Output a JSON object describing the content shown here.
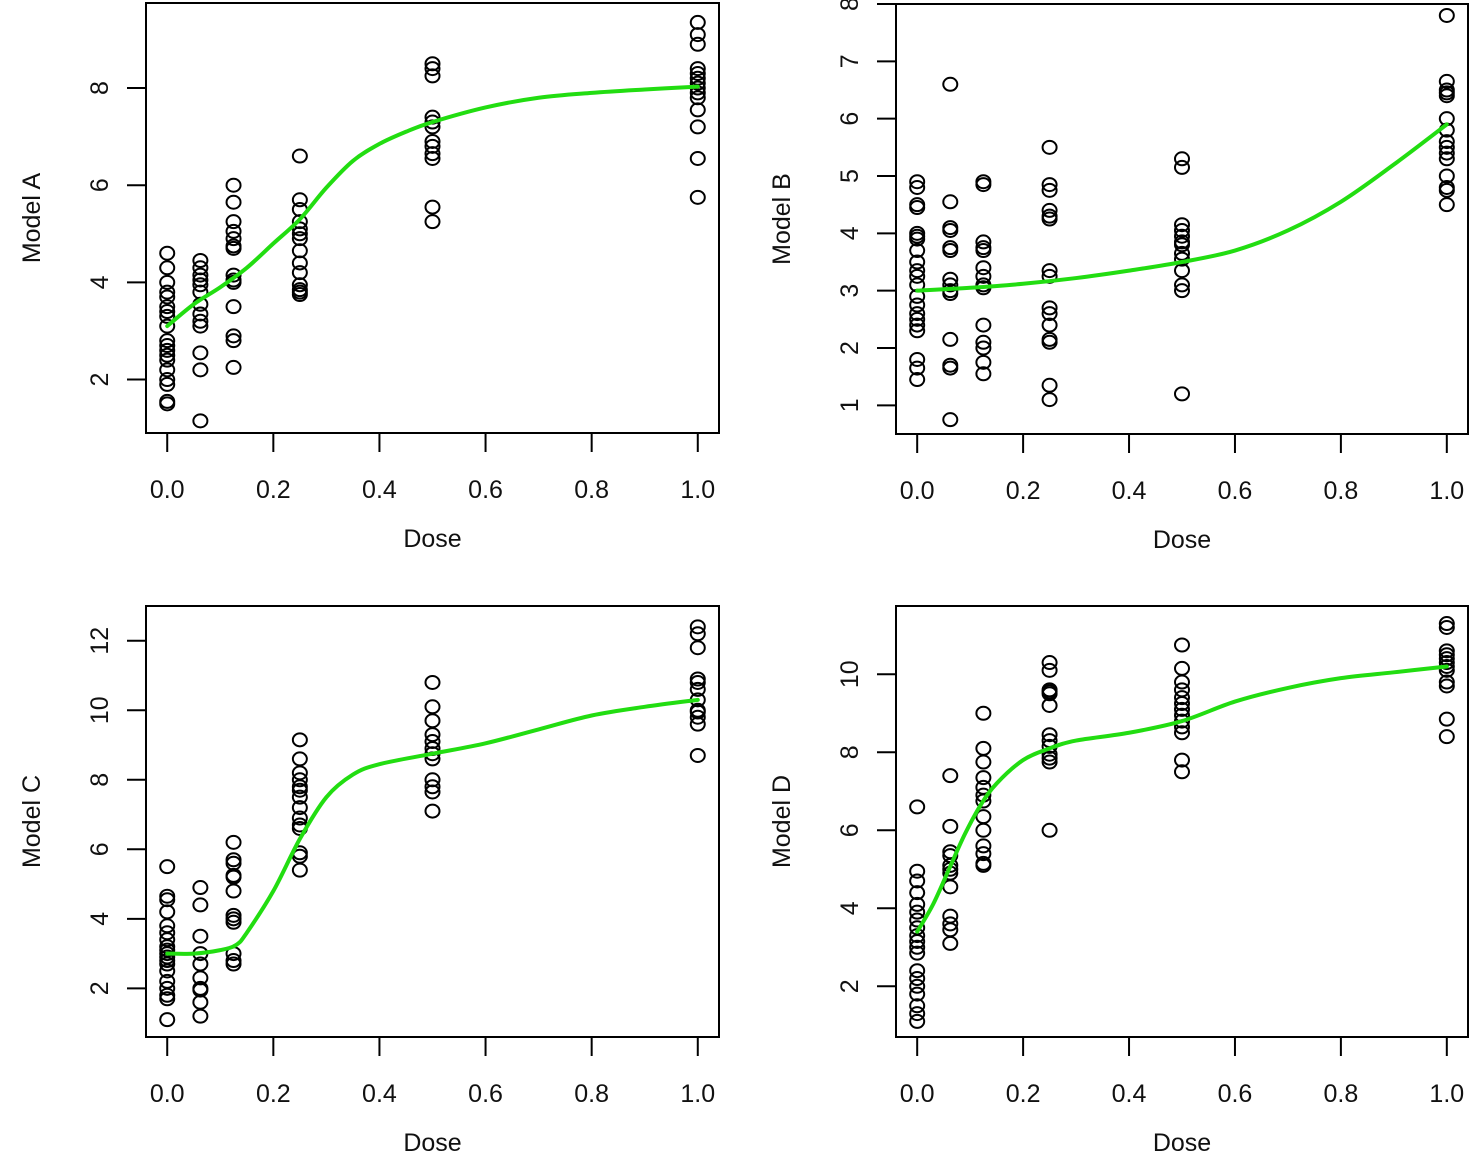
{
  "chart_data": [
    {
      "type": "scatter",
      "title": "",
      "xlabel": "Dose",
      "ylabel": "Model A",
      "xlim": [
        -0.04,
        1.04
      ],
      "ylim": [
        0.9,
        9.75
      ],
      "xticks": [
        0.0,
        0.2,
        0.4,
        0.6,
        0.8,
        1.0
      ],
      "xtick_labels": [
        "0.0",
        "0.2",
        "0.4",
        "0.6",
        "0.8",
        "1.0"
      ],
      "yticks": [
        2,
        4,
        6,
        8
      ],
      "ytick_labels": [
        "2",
        "4",
        "6",
        "8"
      ],
      "grid": false,
      "points": {
        "x_levels": [
          0.0,
          0.0625,
          0.125,
          0.25,
          0.5,
          1.0
        ],
        "y": [
          [
            4.6,
            4.3,
            4.0,
            3.8,
            3.7,
            3.5,
            3.4,
            3.3,
            3.1,
            2.8,
            2.7,
            2.6,
            2.5,
            2.4,
            2.2,
            2.0,
            1.9,
            1.55,
            1.5
          ],
          [
            4.45,
            4.3,
            4.15,
            4.05,
            3.95,
            3.8,
            3.55,
            3.35,
            3.2,
            3.1,
            2.55,
            2.2,
            1.15
          ],
          [
            6.0,
            5.65,
            5.25,
            5.05,
            4.9,
            4.75,
            4.7,
            4.15,
            4.05,
            4.0,
            3.5,
            2.9,
            2.8,
            2.25
          ],
          [
            6.6,
            5.7,
            5.5,
            5.25,
            5.1,
            5.0,
            4.9,
            4.65,
            4.4,
            4.2,
            3.95,
            3.85,
            3.8,
            3.75
          ],
          [
            8.5,
            8.4,
            8.25,
            7.4,
            7.3,
            7.2,
            6.9,
            6.8,
            6.65,
            6.55,
            5.55,
            5.25
          ],
          [
            9.35,
            9.1,
            8.9,
            8.4,
            8.3,
            8.2,
            8.1,
            8.0,
            7.9,
            7.8,
            7.55,
            7.2,
            6.55,
            5.75
          ]
        ]
      },
      "series": [
        {
          "name": "fitted curve",
          "color": "#22dd11",
          "x": [
            0.0,
            0.05,
            0.1,
            0.15,
            0.2,
            0.25,
            0.3,
            0.35,
            0.4,
            0.45,
            0.5,
            0.6,
            0.7,
            0.8,
            0.9,
            1.0
          ],
          "y": [
            3.1,
            3.55,
            3.9,
            4.3,
            4.8,
            5.3,
            5.95,
            6.5,
            6.85,
            7.1,
            7.3,
            7.6,
            7.8,
            7.9,
            7.97,
            8.03
          ]
        }
      ]
    },
    {
      "type": "scatter",
      "title": "",
      "xlabel": "Dose",
      "ylabel": "Model B",
      "xlim": [
        -0.04,
        1.04
      ],
      "ylim": [
        0.5,
        8.0
      ],
      "xticks": [
        0.0,
        0.2,
        0.4,
        0.6,
        0.8,
        1.0
      ],
      "xtick_labels": [
        "0.0",
        "0.2",
        "0.4",
        "0.6",
        "0.8",
        "1.0"
      ],
      "yticks": [
        1,
        2,
        3,
        4,
        5,
        6,
        7,
        8
      ],
      "ytick_labels": [
        "1",
        "2",
        "3",
        "4",
        "5",
        "6",
        "7",
        "8"
      ],
      "grid": false,
      "points": {
        "x_levels": [
          0.0,
          0.0625,
          0.125,
          0.25,
          0.5,
          1.0
        ],
        "y": [
          [
            4.9,
            4.8,
            4.5,
            4.45,
            4.0,
            3.95,
            3.9,
            3.7,
            3.5,
            3.35,
            3.25,
            3.1,
            2.9,
            2.75,
            2.6,
            2.5,
            2.4,
            2.3,
            1.8,
            1.65,
            1.45
          ],
          [
            6.6,
            4.55,
            4.1,
            4.05,
            3.75,
            3.7,
            3.2,
            3.1,
            3.0,
            2.95,
            2.15,
            1.7,
            1.65,
            0.75
          ],
          [
            4.9,
            4.85,
            3.85,
            3.75,
            3.7,
            3.4,
            3.25,
            3.1,
            3.05,
            2.4,
            2.1,
            2.0,
            1.75,
            1.55
          ],
          [
            5.5,
            4.85,
            4.75,
            4.4,
            4.3,
            4.25,
            3.35,
            3.25,
            2.7,
            2.6,
            2.4,
            2.15,
            2.1,
            1.35,
            1.1
          ],
          [
            5.3,
            5.15,
            4.15,
            4.05,
            3.95,
            3.85,
            3.8,
            3.65,
            3.55,
            3.35,
            3.1,
            3.0,
            1.2
          ],
          [
            7.8,
            6.65,
            6.5,
            6.45,
            6.4,
            6.0,
            5.8,
            5.6,
            5.5,
            5.4,
            5.3,
            5.0,
            4.8,
            4.75,
            4.5
          ]
        ]
      },
      "series": [
        {
          "name": "fitted curve",
          "color": "#22dd11",
          "x": [
            0.0,
            0.1,
            0.2,
            0.3,
            0.4,
            0.5,
            0.6,
            0.7,
            0.8,
            0.9,
            1.0
          ],
          "y": [
            3.0,
            3.05,
            3.12,
            3.22,
            3.35,
            3.5,
            3.7,
            4.05,
            4.55,
            5.2,
            5.9
          ]
        }
      ]
    },
    {
      "type": "scatter",
      "title": "",
      "xlabel": "Dose",
      "ylabel": "Model C",
      "xlim": [
        -0.04,
        1.04
      ],
      "ylim": [
        0.6,
        13.0
      ],
      "xticks": [
        0.0,
        0.2,
        0.4,
        0.6,
        0.8,
        1.0
      ],
      "xtick_labels": [
        "0.0",
        "0.2",
        "0.4",
        "0.6",
        "0.8",
        "1.0"
      ],
      "yticks": [
        2,
        4,
        6,
        8,
        10,
        12
      ],
      "ytick_labels": [
        "2",
        "4",
        "6",
        "8",
        "10",
        "12"
      ],
      "grid": false,
      "points": {
        "x_levels": [
          0.0,
          0.0625,
          0.125,
          0.25,
          0.5,
          1.0
        ],
        "y": [
          [
            5.5,
            4.65,
            4.55,
            4.2,
            3.8,
            3.6,
            3.4,
            3.2,
            3.1,
            3.0,
            2.9,
            2.8,
            2.7,
            2.5,
            2.2,
            2.0,
            1.8,
            1.7,
            1.1
          ],
          [
            4.9,
            4.4,
            3.5,
            3.0,
            2.7,
            2.3,
            2.0,
            1.95,
            1.6,
            1.2
          ],
          [
            6.2,
            5.7,
            5.6,
            5.25,
            5.2,
            4.8,
            4.1,
            4.0,
            3.9,
            3.0,
            2.8,
            2.7
          ],
          [
            9.15,
            8.6,
            8.2,
            8.0,
            7.8,
            7.7,
            7.5,
            7.2,
            6.9,
            6.7,
            6.6,
            5.9,
            5.8,
            5.4
          ],
          [
            10.8,
            10.1,
            9.7,
            9.3,
            9.1,
            8.9,
            8.75,
            8.6,
            8.0,
            7.8,
            7.65,
            7.1
          ],
          [
            12.4,
            12.2,
            11.8,
            10.9,
            10.8,
            10.6,
            10.3,
            10.0,
            9.95,
            9.8,
            9.6,
            8.7
          ]
        ]
      },
      "series": [
        {
          "name": "fitted curve",
          "color": "#22dd11",
          "x": [
            0.0,
            0.05,
            0.1,
            0.13,
            0.15,
            0.2,
            0.25,
            0.3,
            0.35,
            0.4,
            0.5,
            0.6,
            0.7,
            0.8,
            0.9,
            1.0
          ],
          "y": [
            3.0,
            3.0,
            3.1,
            3.25,
            3.6,
            4.8,
            6.3,
            7.5,
            8.15,
            8.45,
            8.75,
            9.05,
            9.45,
            9.85,
            10.1,
            10.3
          ]
        }
      ]
    },
    {
      "type": "scatter",
      "title": "",
      "xlabel": "Dose",
      "ylabel": "Model D",
      "xlim": [
        -0.04,
        1.04
      ],
      "ylim": [
        0.7,
        11.75
      ],
      "xticks": [
        0.0,
        0.2,
        0.4,
        0.6,
        0.8,
        1.0
      ],
      "xtick_labels": [
        "0.0",
        "0.2",
        "0.4",
        "0.6",
        "0.8",
        "1.0"
      ],
      "yticks": [
        2,
        4,
        6,
        8,
        10
      ],
      "ytick_labels": [
        "2",
        "4",
        "6",
        "8",
        "10"
      ],
      "grid": false,
      "points": {
        "x_levels": [
          0.0,
          0.0625,
          0.125,
          0.25,
          0.5,
          1.0
        ],
        "y": [
          [
            6.6,
            4.95,
            4.7,
            4.4,
            4.1,
            3.9,
            3.7,
            3.5,
            3.3,
            3.15,
            3.0,
            2.85,
            2.4,
            2.2,
            2.0,
            1.8,
            1.5,
            1.3,
            1.1
          ],
          [
            7.4,
            6.1,
            5.45,
            5.35,
            5.1,
            5.0,
            4.9,
            4.55,
            3.8,
            3.6,
            3.45,
            3.1
          ],
          [
            9.0,
            8.1,
            7.75,
            7.35,
            7.1,
            6.9,
            6.75,
            6.35,
            6.0,
            5.6,
            5.4,
            5.15,
            5.1
          ],
          [
            10.3,
            10.1,
            9.6,
            9.55,
            9.5,
            9.2,
            8.45,
            8.3,
            8.15,
            7.95,
            7.85,
            7.75,
            6.0
          ],
          [
            10.75,
            10.15,
            9.8,
            9.6,
            9.4,
            9.25,
            9.1,
            8.95,
            8.8,
            8.65,
            8.5,
            7.8,
            7.5
          ],
          [
            11.3,
            11.2,
            10.6,
            10.5,
            10.4,
            10.3,
            10.2,
            10.1,
            9.8,
            9.7,
            8.85,
            8.4
          ]
        ]
      },
      "series": [
        {
          "name": "fitted curve",
          "color": "#22dd11",
          "x": [
            0.0,
            0.03,
            0.06,
            0.09,
            0.12,
            0.15,
            0.2,
            0.25,
            0.3,
            0.4,
            0.5,
            0.6,
            0.7,
            0.8,
            0.9,
            1.0
          ],
          "y": [
            3.4,
            4.1,
            5.0,
            5.9,
            6.65,
            7.2,
            7.8,
            8.1,
            8.3,
            8.5,
            8.8,
            9.3,
            9.65,
            9.9,
            10.05,
            10.2
          ]
        }
      ]
    }
  ]
}
